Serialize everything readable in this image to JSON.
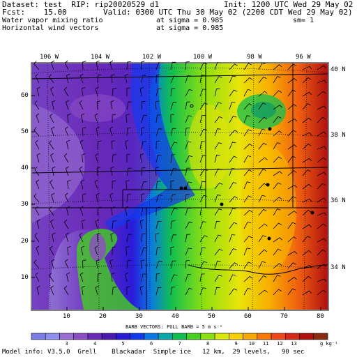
{
  "header": {
    "dataset_line": "Dataset: test  RIP: rip20020529 d1",
    "init_line": "Init: 1200 UTC Wed 29 May 02",
    "fcst_line": "Fcst:    15.00",
    "valid_line": "Valid: 0300 UTC Thu 30 May 02 (2200 CDT Wed 29 May 02)",
    "field1_name": "Water vapor mixing ratio",
    "field1_level": "at sigma = 0.985",
    "field1_smooth": "sm= 1",
    "field2_name": "Horizontal wind vectors",
    "field2_level": "at sigma = 0.985"
  },
  "longitude_labels": [
    "106 W",
    "104 W",
    "102 W",
    "100 W",
    "98 W",
    "96 W"
  ],
  "latitude_labels": [
    "40 N",
    "38 N",
    "36 N",
    "34 N"
  ],
  "y_grid_labels": [
    "60",
    "50",
    "40",
    "30",
    "20",
    "10"
  ],
  "x_grid_labels": [
    "10",
    "20",
    "30",
    "40",
    "50",
    "60",
    "70",
    "80"
  ],
  "barb_note": "BARB VECTORS:  FULL BARB = 5 m s⁻¹",
  "colorbar": {
    "tick_labels": [
      "3",
      "4",
      "5",
      "6",
      "7",
      "8",
      "9",
      "10",
      "11",
      "12",
      "13"
    ],
    "units": "g kg⁻¹",
    "colors": [
      "#7c7ce6",
      "#8f8ff0",
      "#9a6fd0",
      "#8c4cc6",
      "#6a2ab8",
      "#4a1ab0",
      "#2a1ad8",
      "#1438f0",
      "#0a78e6",
      "#06a8a8",
      "#10bf50",
      "#44d020",
      "#8ce010",
      "#d8e80a",
      "#f8d000",
      "#f8a800",
      "#f87800",
      "#f04818",
      "#d82818",
      "#b01010",
      "#8a2a10"
    ]
  },
  "footer": "Model info: V3.5.0  Grell    Blackadar  Simple ice   12 km,  29 levels,   90 sec"
}
